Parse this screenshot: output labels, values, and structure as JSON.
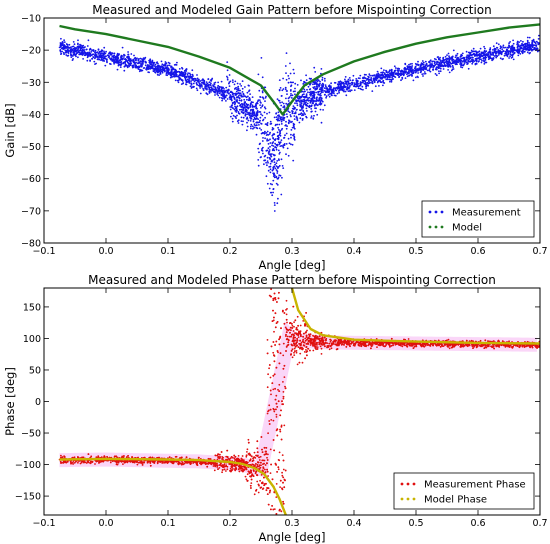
{
  "chart_data": [
    {
      "type": "scatter",
      "title": "Measured and Modeled Gain Pattern before Mispointing Correction",
      "xlabel": "Angle [deg]",
      "ylabel": "Gain [dB]",
      "xlim": [
        -0.1,
        0.7
      ],
      "ylim": [
        -80,
        -10
      ],
      "x_ticks": [
        -0.1,
        0.0,
        0.1,
        0.2,
        0.3,
        0.4,
        0.5,
        0.6,
        0.7
      ],
      "y_ticks": [
        -80,
        -70,
        -60,
        -50,
        -40,
        -30,
        -20,
        -10
      ],
      "x_tick_labels": [
        "−0.1",
        "0.0",
        "0.1",
        "0.2",
        "0.3",
        "0.4",
        "0.5",
        "0.6",
        "0.7"
      ],
      "y_tick_labels": [
        "−80",
        "−70",
        "−60",
        "−50",
        "−40",
        "−30",
        "−20",
        "−10"
      ],
      "legend_position": "lower-right",
      "grid": false,
      "series": [
        {
          "name": "Measurement",
          "marker": "dots",
          "color": "#1515e8",
          "x": [
            -0.075,
            -0.05,
            0.0,
            0.05,
            0.1,
            0.15,
            0.2,
            0.225,
            0.25,
            0.26,
            0.27,
            0.28,
            0.29,
            0.3,
            0.32,
            0.35,
            0.4,
            0.45,
            0.5,
            0.55,
            0.6,
            0.65,
            0.7
          ],
          "y": [
            -19.5,
            -20,
            -22,
            -24,
            -26.5,
            -30,
            -34,
            -37,
            -42,
            -48,
            -55,
            -47,
            -41,
            -38,
            -35.5,
            -33,
            -30.5,
            -28,
            -26,
            -24,
            -22,
            -20,
            -18.5
          ]
        },
        {
          "name": "Model",
          "marker": "line",
          "color": "#1f7a1f",
          "x": [
            -0.075,
            -0.05,
            0.0,
            0.05,
            0.1,
            0.15,
            0.2,
            0.25,
            0.27,
            0.285,
            0.3,
            0.32,
            0.35,
            0.4,
            0.45,
            0.5,
            0.55,
            0.6,
            0.65,
            0.7
          ],
          "y": [
            -12.5,
            -13.5,
            -15,
            -17,
            -19,
            -22,
            -25.5,
            -31,
            -36,
            -40,
            -36,
            -31,
            -27.5,
            -23.5,
            -20.5,
            -18,
            -16,
            -14.5,
            -13,
            -12
          ]
        }
      ]
    },
    {
      "type": "scatter",
      "title": "Measured and Modeled Phase Pattern before Mispointing Correction",
      "xlabel": "Angle [deg]",
      "ylabel": "Phase [deg]",
      "xlim": [
        -0.1,
        0.7
      ],
      "ylim": [
        -180,
        180
      ],
      "x_ticks": [
        -0.1,
        0.0,
        0.1,
        0.2,
        0.3,
        0.4,
        0.5,
        0.6,
        0.7
      ],
      "y_ticks": [
        -150,
        -100,
        -50,
        0,
        50,
        100,
        150
      ],
      "x_tick_labels": [
        "−0.1",
        "0.0",
        "0.1",
        "0.2",
        "0.3",
        "0.4",
        "0.5",
        "0.6",
        "0.7"
      ],
      "y_tick_labels": [
        "−150",
        "−100",
        "−50",
        "0",
        "50",
        "100",
        "150"
      ],
      "legend_position": "lower-right",
      "grid": false,
      "series": [
        {
          "name": "Measurement Phase",
          "marker": "dots",
          "color": "#e01010",
          "x": [
            -0.075,
            0.0,
            0.1,
            0.15,
            0.2,
            0.22,
            0.24,
            0.26,
            0.27,
            0.28,
            0.29,
            0.3,
            0.32,
            0.35,
            0.4,
            0.5,
            0.6,
            0.7
          ],
          "y": [
            -93,
            -92,
            -94,
            -95,
            -98,
            -100,
            -105,
            -110,
            0,
            120,
            110,
            100,
            96,
            94,
            93,
            92,
            91,
            90
          ]
        },
        {
          "name": "Model Phase",
          "marker": "line",
          "color": "#c8b400",
          "x": [
            -0.075,
            0.0,
            0.1,
            0.15,
            0.2,
            0.22,
            0.24,
            0.255,
            0.27,
            0.28,
            0.29,
            0.3,
            0.31,
            0.33,
            0.35,
            0.4,
            0.5,
            0.6,
            0.7
          ],
          "y": [
            -92,
            -91,
            -92,
            -93,
            -96,
            -99,
            -106,
            -115,
            -135,
            -155,
            -180,
            180,
            145,
            115,
            105,
            98,
            95,
            93,
            92
          ]
        }
      ]
    }
  ]
}
